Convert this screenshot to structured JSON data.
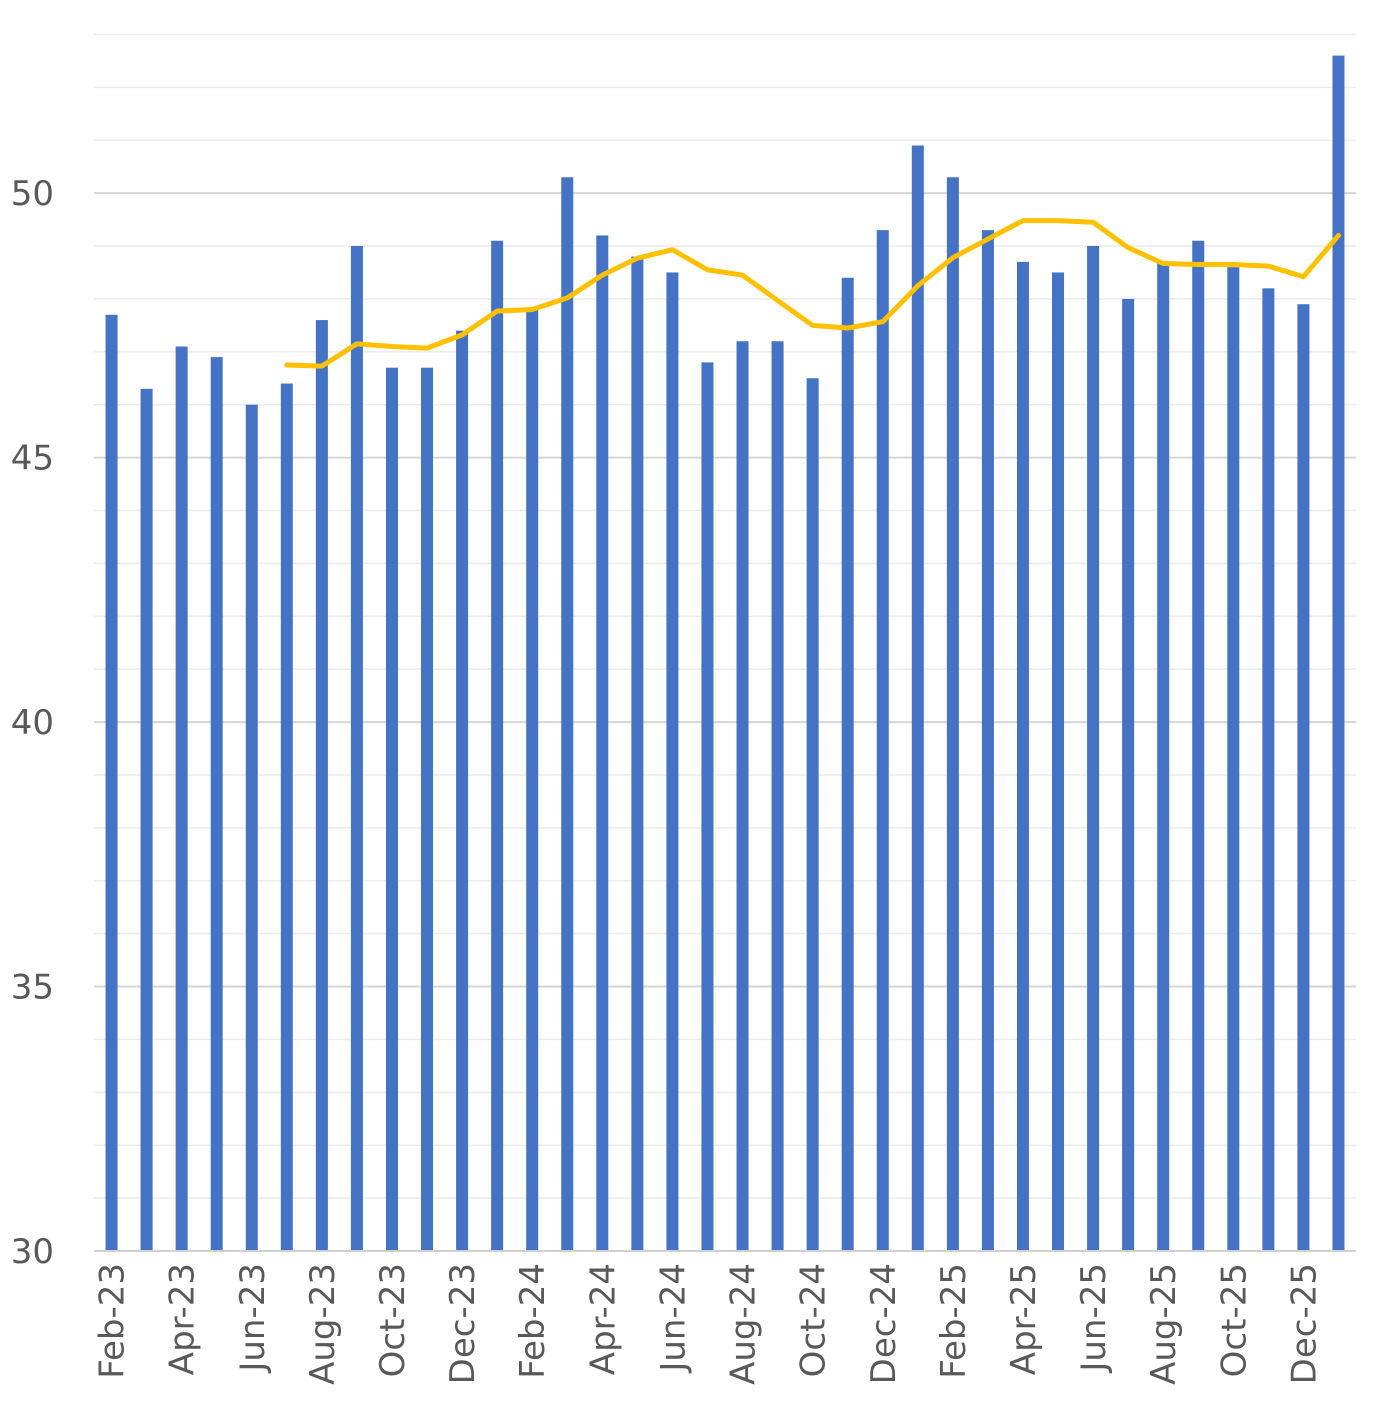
{
  "chart_data": {
    "type": "bar",
    "categories": [
      "Feb-23",
      "Mar-23",
      "Apr-23",
      "May-23",
      "Jun-23",
      "Jul-23",
      "Aug-23",
      "Sep-23",
      "Oct-23",
      "Nov-23",
      "Dec-23",
      "Jan-24",
      "Feb-24",
      "Mar-24",
      "Apr-24",
      "May-24",
      "Jun-24",
      "Jul-24",
      "Aug-24",
      "Sep-24",
      "Oct-24",
      "Nov-24",
      "Dec-24",
      "Jan-25",
      "Feb-25",
      "Mar-25",
      "Apr-25",
      "May-25",
      "Jun-25",
      "Jul-25",
      "Aug-25",
      "Sep-25",
      "Oct-25",
      "Nov-25",
      "Dec-25",
      "Jan-26"
    ],
    "x_tick_labels": [
      "Feb-23",
      "Apr-23",
      "Jun-23",
      "Aug-23",
      "Oct-23",
      "Dec-23",
      "Feb-24",
      "Apr-24",
      "Jun-24",
      "Aug-24",
      "Oct-24",
      "Dec-24",
      "Feb-25",
      "Apr-25",
      "Jun-25",
      "Aug-25",
      "Oct-25",
      "Dec-25"
    ],
    "series": [
      {
        "type": "bar",
        "color": "#4472C4",
        "values": [
          47.7,
          46.3,
          47.1,
          46.9,
          46.0,
          46.4,
          47.6,
          49.0,
          46.7,
          46.7,
          47.4,
          49.1,
          47.8,
          50.3,
          49.2,
          48.8,
          48.5,
          46.8,
          47.2,
          47.2,
          46.5,
          48.4,
          49.3,
          50.9,
          50.3,
          49.3,
          48.7,
          48.5,
          49.0,
          48.0,
          48.7,
          49.1,
          48.6,
          48.2,
          47.9,
          52.6
        ]
      },
      {
        "type": "line",
        "color": "#FFC000",
        "values": [
          null,
          null,
          null,
          null,
          null,
          46.75,
          46.73,
          47.15,
          47.1,
          47.07,
          47.32,
          47.77,
          47.8,
          48.02,
          48.45,
          48.77,
          48.93,
          48.55,
          48.45,
          47.97,
          47.5,
          47.45,
          47.57,
          48.25,
          48.78,
          49.13,
          49.48,
          49.48,
          49.45,
          48.97,
          48.67,
          48.65,
          48.65,
          48.62,
          48.42,
          49.2
        ]
      }
    ],
    "ylim": [
      30,
      53.5
    ],
    "y_ticks": [
      30,
      35,
      40,
      45,
      50
    ],
    "y_minor_step": 1,
    "grid": true,
    "legend": "none"
  }
}
